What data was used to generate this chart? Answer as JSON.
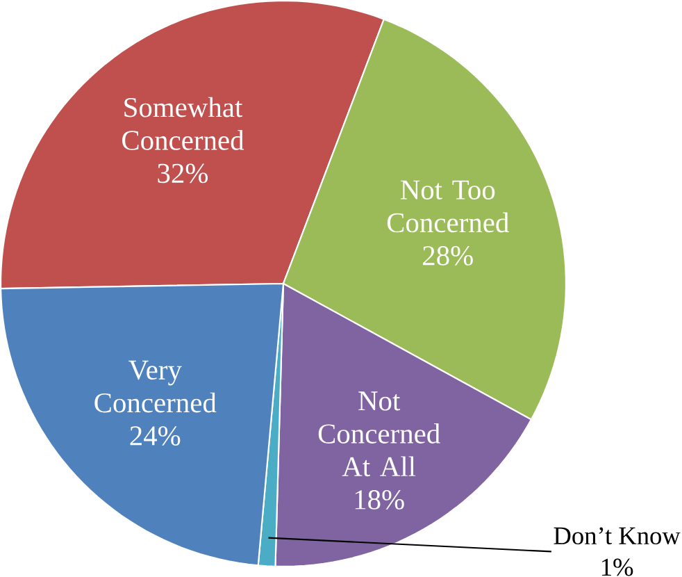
{
  "chart_data": {
    "type": "pie",
    "categories": [
      "Somewhat Concerned",
      "Not Too Concerned",
      "Not Concerned At All",
      "Don’t Know",
      "Very Concerned"
    ],
    "values": [
      32,
      28,
      18,
      1,
      24
    ],
    "colors": [
      "#c0504d",
      "#9bbb59",
      "#8064a2",
      "#4bacc6",
      "#4f81bd"
    ],
    "value_labels": [
      "32%",
      "28%",
      "18%",
      "1%",
      "24%"
    ]
  }
}
